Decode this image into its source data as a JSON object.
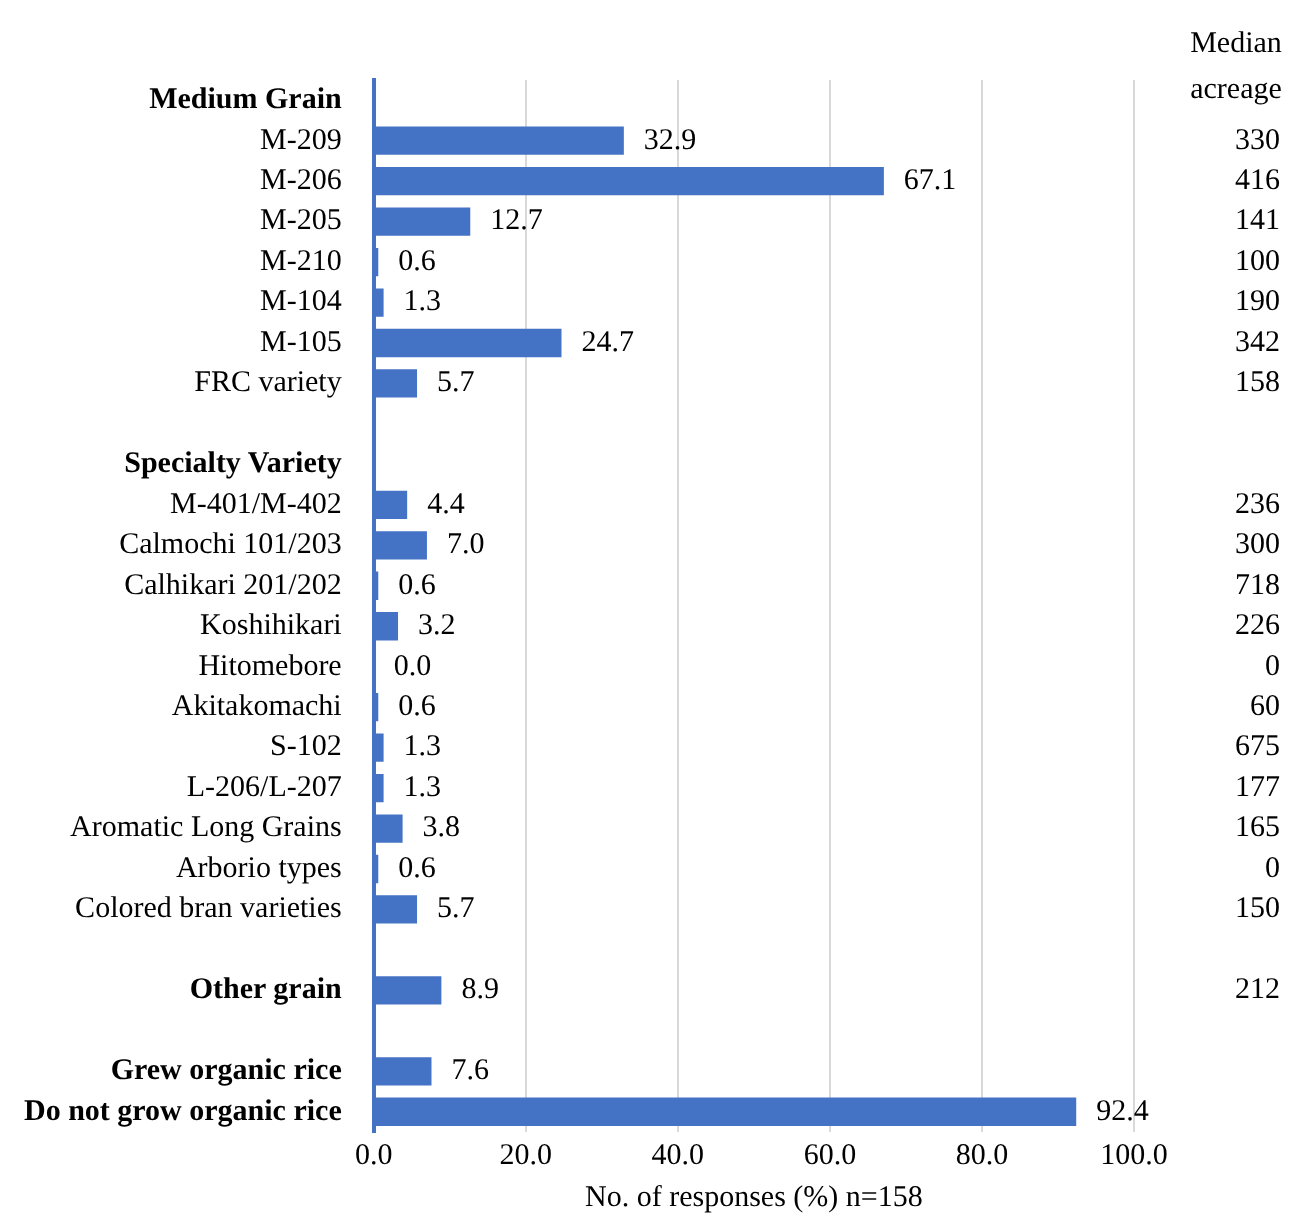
{
  "chart_data": {
    "type": "bar",
    "orientation": "horizontal",
    "xlabel": "No. of responses (%) n=158",
    "categories": [
      "Medium Grain",
      "M-209",
      "M-206",
      "M-205",
      "M-210",
      "M-104",
      "M-105",
      "FRC variety",
      null,
      "Specialty Variety",
      "M-401/M-402",
      "Calmochi 101/203",
      "Calhikari 201/202",
      "Koshihikari",
      "Hitomebore",
      "Akitakomachi",
      "S-102",
      "L-206/L-207",
      "Aromatic Long Grains",
      "Arborio types",
      "Colored bran varieties",
      null,
      "Other grain",
      null,
      "Grew organic rice",
      "Do not grow organic rice"
    ],
    "values": [
      null,
      32.9,
      67.1,
      12.7,
      0.6,
      1.3,
      24.7,
      5.7,
      null,
      null,
      4.4,
      7.0,
      0.6,
      3.2,
      0.0,
      0.6,
      1.3,
      1.3,
      3.8,
      0.6,
      5.7,
      null,
      8.9,
      null,
      7.6,
      92.4
    ],
    "value_labels": [
      null,
      "32.9",
      "67.1",
      "12.7",
      "0.6",
      "1.3",
      "24.7",
      "5.7",
      null,
      null,
      "4.4",
      "7.0",
      "0.6",
      "3.2",
      "0.0",
      "0.6",
      "1.3",
      "1.3",
      "3.8",
      "0.6",
      "5.7",
      null,
      "8.9",
      null,
      "7.6",
      "92.4"
    ],
    "color": "#4472c4",
    "xlim": [
      0,
      100
    ],
    "xticks": [
      {
        "value": 0,
        "label": "0.0"
      },
      {
        "value": 20,
        "label": "20.0"
      },
      {
        "value": 40,
        "label": "40.0"
      },
      {
        "value": 60,
        "label": "60.0"
      },
      {
        "value": 80,
        "label": "80.0"
      },
      {
        "value": 100,
        "label": "100.0"
      }
    ],
    "grid": "x",
    "annotations": [
      "Median acreage",
      "330",
      "416",
      "141",
      "100",
      "190",
      "342",
      "158",
      "236",
      "300",
      "718",
      "226",
      "0",
      "60",
      "675",
      "177",
      "165",
      "0",
      "150",
      "212"
    ]
  }
}
